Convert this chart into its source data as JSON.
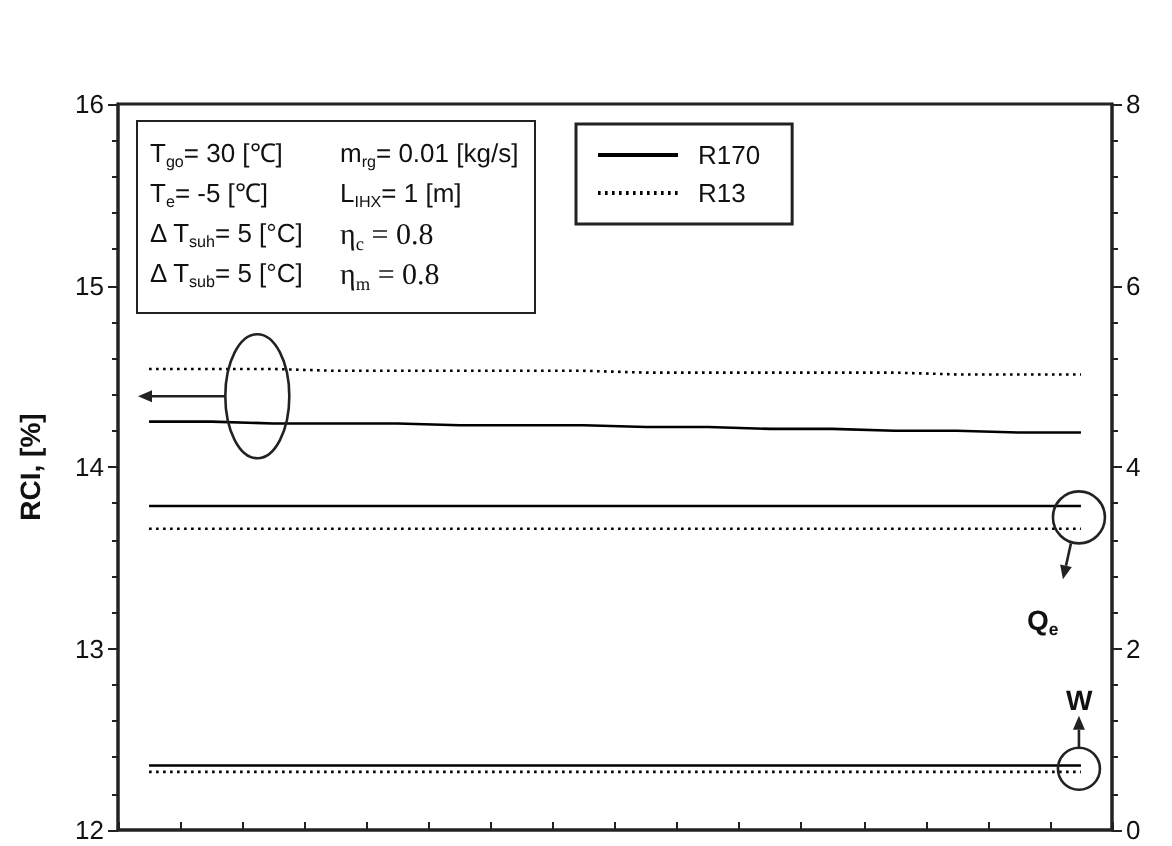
{
  "chart_data": {
    "type": "line",
    "ylabel": "RCI, [%]",
    "categories": [
      null,
      null,
      null,
      null,
      null,
      null,
      null,
      null,
      null,
      null,
      null,
      null,
      null,
      null,
      null,
      null
    ],
    "series": [
      {
        "name": "R170",
        "color": "#000000",
        "line_style": "solid",
        "values": [
          14.25,
          14.25,
          14.24,
          14.24,
          14.24,
          14.23,
          14.23,
          14.23,
          14.22,
          14.22,
          14.21,
          14.21,
          14.2,
          14.2,
          14.19,
          14.19
        ]
      },
      {
        "name": "R13",
        "color": "#000000",
        "line_style": "dotted",
        "values": [
          14.54,
          14.54,
          14.54,
          14.53,
          14.53,
          14.53,
          14.53,
          14.53,
          14.52,
          14.52,
          14.52,
          14.52,
          14.52,
          14.51,
          14.51,
          14.51
        ]
      },
      {
        "color": "#000000",
        "line_style": "solid",
        "axis": "y2",
        "values": [
          3.57,
          3.57,
          3.57,
          3.57,
          3.57,
          3.57,
          3.57,
          3.57,
          3.57,
          3.57,
          3.57,
          3.57,
          3.57,
          3.57,
          3.57,
          3.57
        ]
      },
      {
        "color": "#000000",
        "line_style": "dotted",
        "axis": "y2",
        "values": [
          3.32,
          3.32,
          3.32,
          3.32,
          3.32,
          3.32,
          3.32,
          3.32,
          3.32,
          3.32,
          3.32,
          3.32,
          3.32,
          3.32,
          3.32,
          3.32
        ]
      },
      {
        "color": "#000000",
        "line_style": "solid",
        "axis": "y2",
        "values": [
          0.71,
          0.71,
          0.71,
          0.71,
          0.71,
          0.71,
          0.71,
          0.71,
          0.71,
          0.71,
          0.71,
          0.71,
          0.71,
          0.71,
          0.71,
          0.71
        ]
      },
      {
        "color": "#000000",
        "line_style": "dotted",
        "axis": "y2",
        "values": [
          0.64,
          0.64,
          0.64,
          0.64,
          0.64,
          0.64,
          0.64,
          0.64,
          0.64,
          0.64,
          0.64,
          0.64,
          0.64,
          0.64,
          0.64,
          0.64
        ]
      }
    ],
    "ylim": [
      12,
      16
    ],
    "yticks": [
      12,
      13,
      14,
      15,
      16
    ],
    "y2lim": [
      0,
      8
    ],
    "y2ticks": [
      0,
      2,
      4,
      6,
      8
    ],
    "legend": "top",
    "marker": "none",
    "annotations": [
      "T$_{go}$= 30 [℃]",
      "m$_{rg}$= 0.01 [kg/s]",
      "T$_{e}$= -5 [℃]",
      "L$_{IHX}$= 1 [m]",
      "Δ T$_{suh}$= 5 [°C]",
      "η$_{c}$ = 0.8",
      "Δ T$_{sub}$= 5 [°C]",
      "η$_{m}$ = 0.8",
      "Q$_{e}$",
      "W"
    ]
  }
}
